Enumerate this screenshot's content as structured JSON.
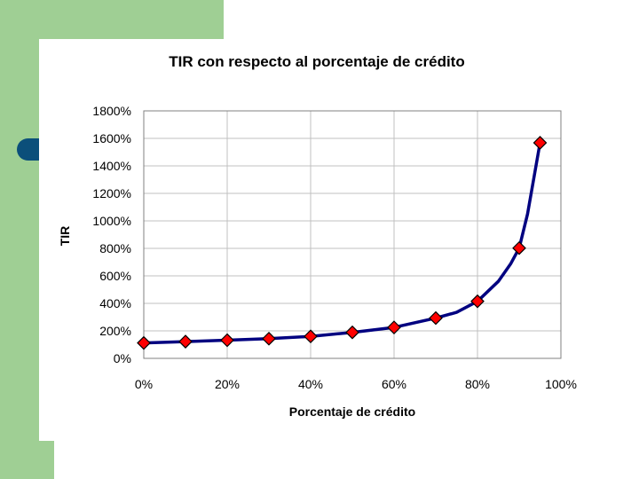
{
  "colors": {
    "background_accent": "#9fcf94",
    "tab_accent": "#0b4f7a",
    "line": "#000080",
    "marker_fill": "#ff0000",
    "grid": "#c0c0c0"
  },
  "chart_data": {
    "type": "line",
    "title": "TIR con respecto al porcentaje de crédito",
    "xlabel": "Porcentaje de crédito",
    "ylabel": "TIR",
    "x_ticks": [
      "0%",
      "20%",
      "40%",
      "60%",
      "80%",
      "100%"
    ],
    "y_ticks": [
      "0%",
      "200%",
      "400%",
      "600%",
      "800%",
      "1000%",
      "1200%",
      "1400%",
      "1600%",
      "1800%"
    ],
    "xlim": [
      0,
      100
    ],
    "ylim": [
      0,
      1800
    ],
    "grid": true,
    "legend": "none",
    "series": [
      {
        "marker": "diamond",
        "points": [
          {
            "x": 0,
            "y": 112
          },
          {
            "x": 10,
            "y": 122
          },
          {
            "x": 20,
            "y": 132
          },
          {
            "x": 30,
            "y": 143
          },
          {
            "x": 40,
            "y": 160
          },
          {
            "x": 50,
            "y": 189
          },
          {
            "x": 60,
            "y": 225
          },
          {
            "x": 70,
            "y": 293
          },
          {
            "x": 80,
            "y": 415
          },
          {
            "x": 90,
            "y": 802
          },
          {
            "x": 95,
            "y": 1568
          }
        ],
        "curve_points": [
          {
            "x": 75,
            "y": 335
          },
          {
            "x": 85,
            "y": 560
          },
          {
            "x": 88,
            "y": 690
          },
          {
            "x": 92,
            "y": 1050
          }
        ]
      }
    ]
  }
}
